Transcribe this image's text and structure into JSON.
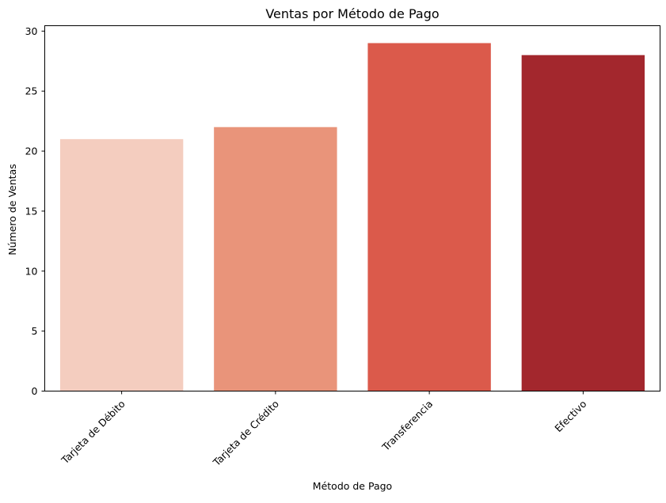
{
  "chart_data": {
    "type": "bar",
    "title": "Ventas por Método de Pago",
    "xlabel": "Método de Pago",
    "ylabel": "Número de Ventas",
    "categories": [
      "Tarjeta de Débito",
      "Tarjeta de Crédito",
      "Transferencia",
      "Efectivo"
    ],
    "values": [
      21,
      22,
      29,
      28
    ],
    "colors": [
      "#f4cdbf",
      "#e9947a",
      "#db5a4b",
      "#a3272d"
    ],
    "ylim": [
      0,
      30.45
    ],
    "yticks": [
      0,
      5,
      10,
      15,
      20,
      25,
      30
    ],
    "grid": false,
    "legend": "none"
  }
}
